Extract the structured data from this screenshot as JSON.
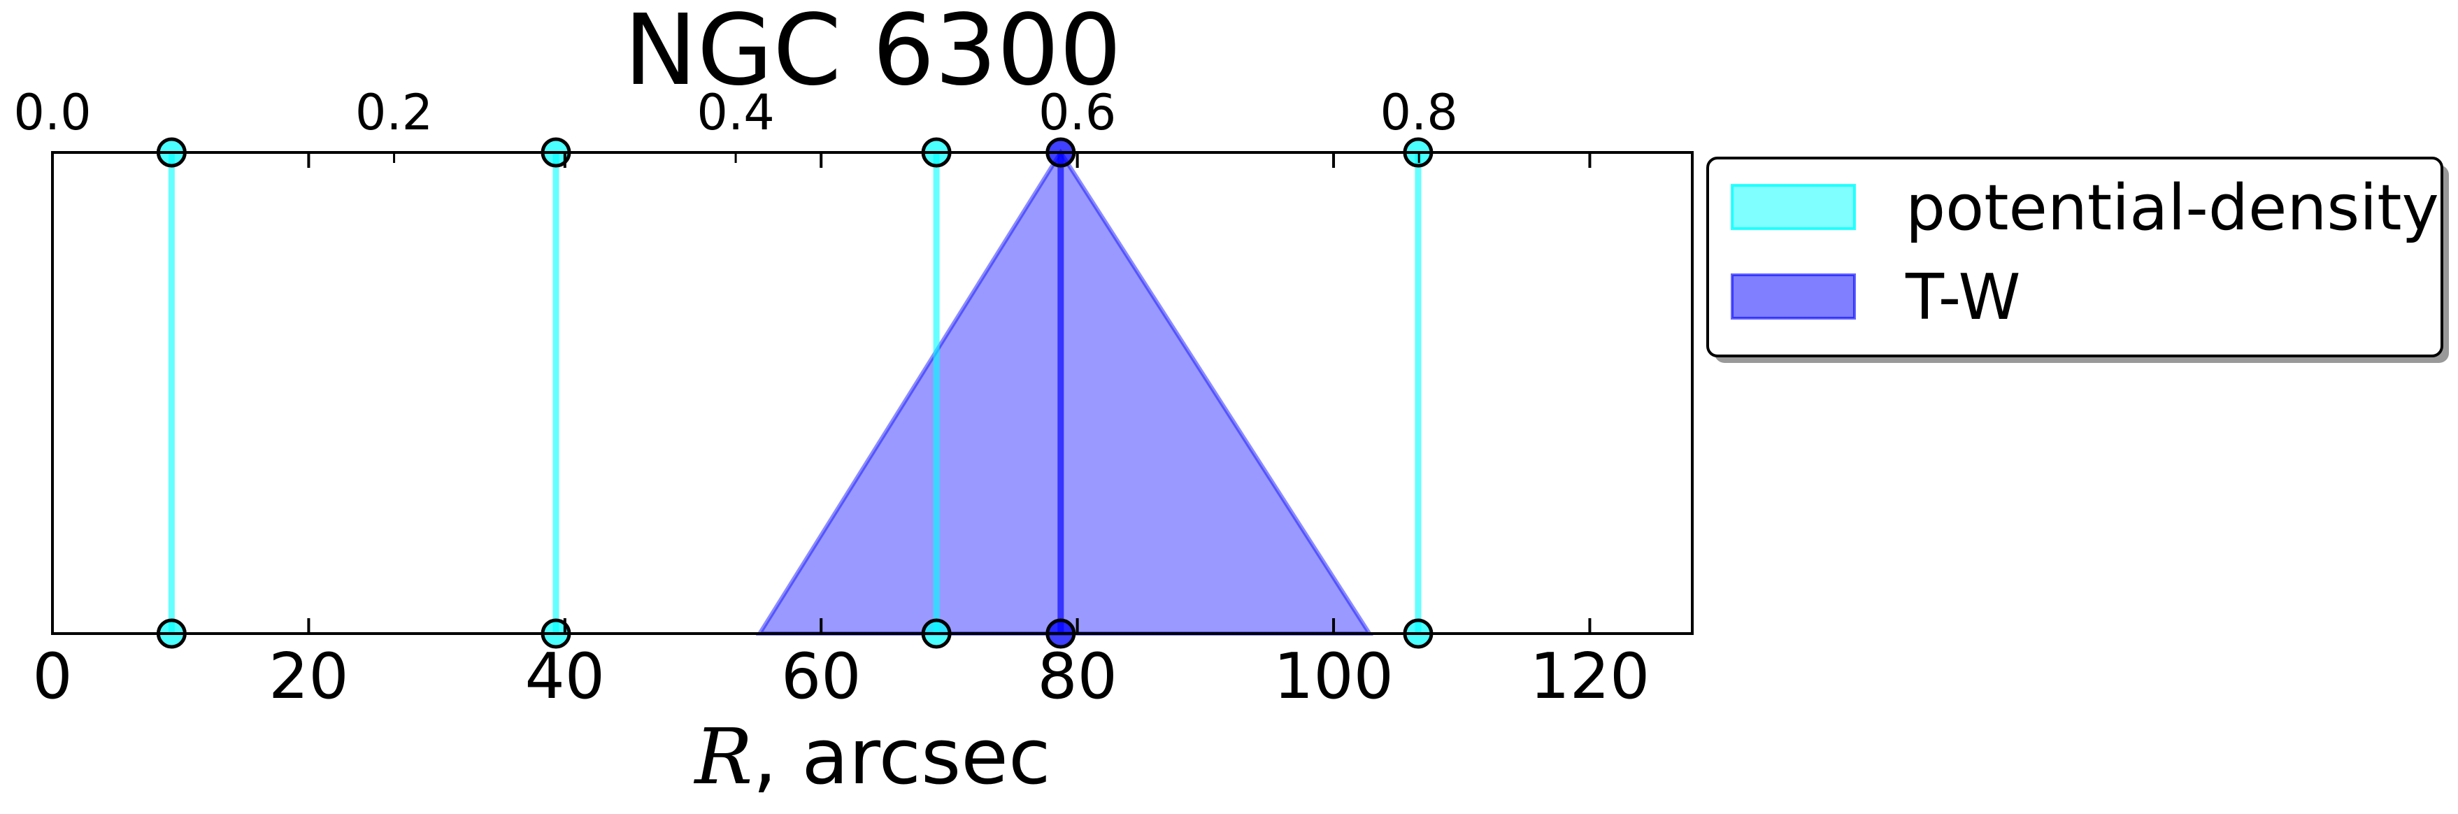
{
  "chart_data": {
    "type": "line",
    "title": "NGC 6300",
    "xlabel_symbol": "R",
    "xlabel_rest": ", arcsec",
    "xlim": [
      0,
      128
    ],
    "xticks": [
      0,
      20,
      40,
      60,
      80,
      100,
      120
    ],
    "top_axis": {
      "ticks": [
        0.0,
        0.2,
        0.4,
        0.6,
        0.8
      ],
      "labels": [
        "0.0",
        "0.2",
        "0.4",
        "0.6",
        "0.8"
      ],
      "value_per_bottom_unit": 0.0075
    },
    "grid": false,
    "legend_position": "outside-right-top",
    "series": [
      {
        "name": "potential-density",
        "kind": "vertical-lines",
        "color": "#00ffff",
        "x": [
          9.3,
          39.3,
          69,
          106.6
        ]
      },
      {
        "name": "T-W",
        "kind": "triangle-area",
        "color": "#0000ff",
        "x": [
          55.2,
          78.7,
          102.8
        ],
        "peak_line_x": 78.7
      }
    ]
  }
}
